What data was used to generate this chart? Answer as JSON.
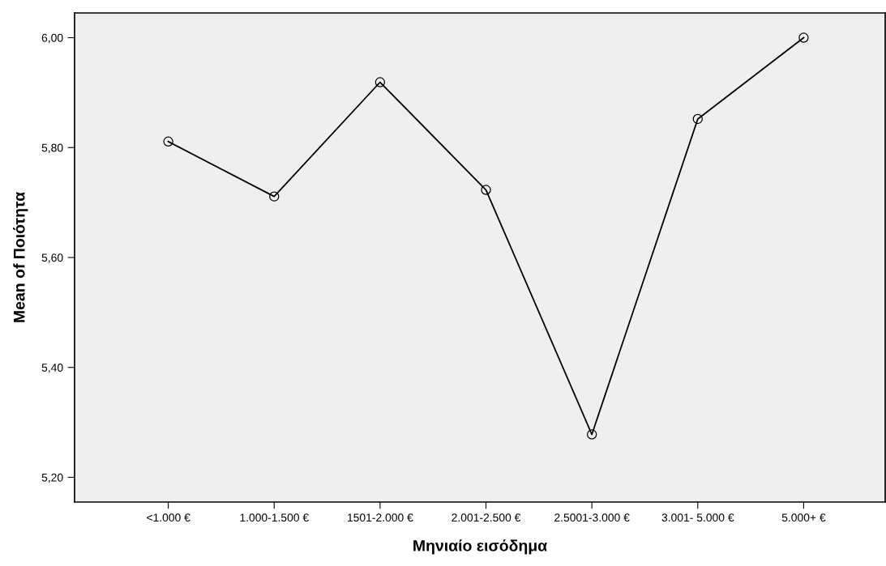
{
  "chart_data": {
    "type": "line",
    "xlabel": "Μηνιαίο εισόδημα",
    "ylabel": "Mean of Ποιότητα",
    "categories": [
      "<1.000 €",
      "1.000-1.500 €",
      "1501-2.000 €",
      "2.001-2.500 €",
      "2.5001-3.000 €",
      "3.001- 5.000 €",
      "5.000+ €"
    ],
    "series": [
      {
        "color": "#000000",
        "values": [
          5.811,
          5.711,
          5.919,
          5.723,
          5.278,
          5.852,
          6.0
        ]
      }
    ],
    "ylim": [
      5.155,
      6.045
    ],
    "yticks": [
      {
        "value": 5.2,
        "label": "5,20"
      },
      {
        "value": 5.4,
        "label": "5,40"
      },
      {
        "value": 5.6,
        "label": "5,60"
      },
      {
        "value": 5.8,
        "label": "5,80"
      },
      {
        "value": 6.0,
        "label": "6,00"
      }
    ],
    "grid": false,
    "legend": false,
    "marker": "circle",
    "line_style": "solid"
  }
}
